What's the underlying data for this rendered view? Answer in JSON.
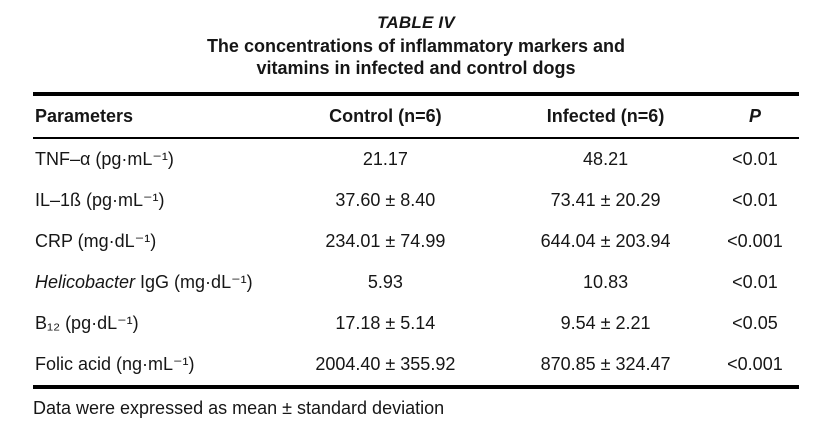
{
  "title": {
    "label": "TABLE IV",
    "caption_line1": "The concentrations of inflammatory markers and",
    "caption_line2": "vitamins in infected and control dogs"
  },
  "table": {
    "columns": [
      "Parameters",
      "Control (n=6)",
      "Infected (n=6)",
      "P"
    ],
    "rows": [
      {
        "param_italic": "",
        "param_rest": "TNF–α (pg·mL⁻¹)",
        "control": "21.17",
        "infected": "48.21",
        "p": "<0.01"
      },
      {
        "param_italic": "",
        "param_rest": "IL–1ß (pg·mL⁻¹)",
        "control": "37.60 ± 8.40",
        "infected": "73.41 ± 20.29",
        "p": "<0.01"
      },
      {
        "param_italic": "",
        "param_rest": "CRP (mg·dL⁻¹)",
        "control": "234.01 ± 74.99",
        "infected": "644.04 ± 203.94",
        "p": "<0.001"
      },
      {
        "param_italic": "Helicobacter",
        "param_rest": " IgG (mg·dL⁻¹)",
        "control": "5.93",
        "infected": "10.83",
        "p": "<0.01"
      },
      {
        "param_italic": "",
        "param_rest": "B₁₂ (pg·dL⁻¹)",
        "control": "17.18 ± 5.14",
        "infected": "9.54 ± 2.21",
        "p": "<0.05"
      },
      {
        "param_italic": "",
        "param_rest": "Folic acid (ng·mL⁻¹)",
        "control": "2004.40 ± 355.92",
        "infected": "870.85 ± 324.47",
        "p": "<0.001"
      }
    ]
  },
  "footnote": "Data were expressed as mean ± standard deviation",
  "colors": {
    "text": "#161616",
    "rule": "#000000",
    "background": "#ffffff"
  }
}
